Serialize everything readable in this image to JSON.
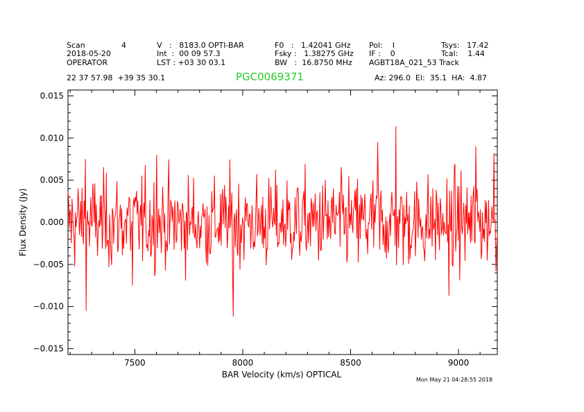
{
  "header": {
    "col1": [
      "Scan",
      "2018-05-20",
      "OPERATOR"
    ],
    "scan_number": "4",
    "col2": [
      "V   :   8183.0 OPTI-BAR",
      "Int  :  00 09 57.3",
      "LST : +03 30 03.1"
    ],
    "col3": [
      "F0   :   1.42041 GHz",
      "Fsky :   1.38275 GHz",
      "BW   :  16.8750 MHz"
    ],
    "col4": [
      "Pol:    I",
      "IF :    0",
      "AGBT18A_021_53 Track"
    ],
    "col5": [
      "Tsys:   17.42",
      "Tcal:    1.44"
    ],
    "coords": "22 37 57.98  +39 35 30.1",
    "source": "PGC0069371",
    "pointing": "Az: 296.0  El:  35.1  HA:  4.87",
    "timestamp": "Mon May 21 04:28:55 2018"
  },
  "chart_data": {
    "type": "line",
    "title": "PGC0069371",
    "xlabel": "BAR Velocity (km/s) OPTICAL",
    "ylabel": "Flux Density (Jy)",
    "xlim": [
      7190,
      9180
    ],
    "ylim": [
      -0.0157,
      0.0157
    ],
    "xticks": [
      7500,
      8000,
      8500,
      9000
    ],
    "xtick_labels": [
      "7500",
      "8000",
      "8500",
      "9000"
    ],
    "yticks": [
      0.015,
      0.01,
      0.005,
      0.0,
      -0.005,
      -0.01,
      -0.015
    ],
    "ytick_labels": [
      "0.015",
      "0.010",
      "0.005",
      "0.000",
      "−0.005",
      "−0.010",
      "−0.015"
    ],
    "line_color": "#ff0000",
    "noise_rms": 0.003,
    "n_channels": 640,
    "features": [
      {
        "x": 7270,
        "y": 0.0075
      },
      {
        "x": 7275,
        "y": -0.0105
      },
      {
        "x": 7490,
        "y": -0.0075
      },
      {
        "x": 7600,
        "y": 0.008
      },
      {
        "x": 7955,
        "y": -0.0112
      },
      {
        "x": 8625,
        "y": 0.0095
      },
      {
        "x": 8710,
        "y": 0.0114
      },
      {
        "x": 8955,
        "y": -0.0087
      },
      {
        "x": 9080,
        "y": 0.009
      },
      {
        "x": 9165,
        "y": 0.0082
      }
    ]
  }
}
